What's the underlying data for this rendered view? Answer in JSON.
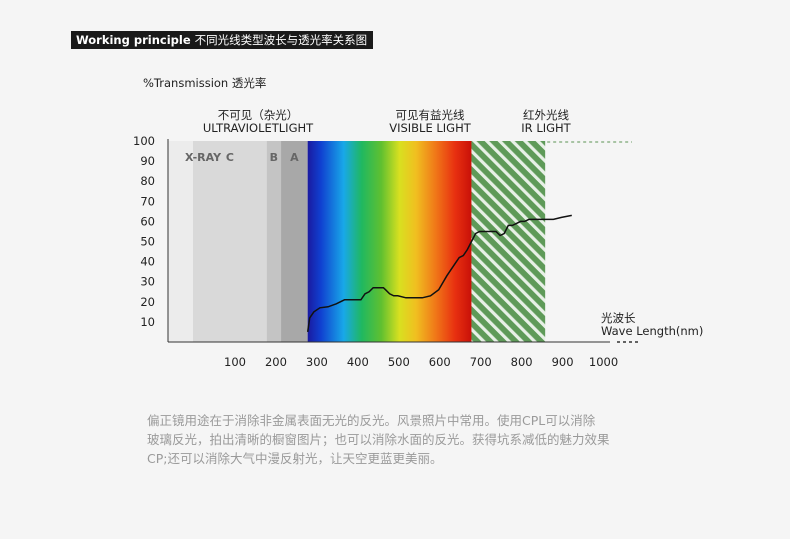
{
  "header": {
    "title_en": "Working principle",
    "title_zh": "不同光线类型波长与透光率关系图"
  },
  "chart_data": {
    "type": "line",
    "ylabel": "%Transmission 透光率",
    "xlabel_zh": "光波长",
    "xlabel_en": "Wave Length(nm)",
    "x_ticks": [
      100,
      200,
      300,
      400,
      500,
      600,
      700,
      800,
      900,
      1000
    ],
    "y_ticks": [
      10,
      20,
      30,
      40,
      50,
      60,
      70,
      80,
      90,
      100
    ],
    "ylim": [
      0,
      100
    ],
    "regions": [
      {
        "label": "X-RAY",
        "from": 0,
        "to": 100,
        "color": "#ececec"
      },
      {
        "label": "C",
        "from": 100,
        "to": 280,
        "color": "#d9d9d9"
      },
      {
        "label": "B",
        "from": 280,
        "to": 315,
        "color": "#c4c4c4"
      },
      {
        "label": "A",
        "from": 315,
        "to": 380,
        "color": "#a8a8a8"
      }
    ],
    "region_groups": [
      {
        "label_zh": "不可见（杂光）",
        "label_en": "ULTRAVIOLETLIGHT"
      },
      {
        "label_zh": "可见有益光线",
        "label_en": "VISIBLE LIGHT"
      },
      {
        "label_zh": "红外光线",
        "label_en": "IR LIGHT"
      }
    ],
    "visible_range": [
      380,
      780
    ],
    "ir_range": [
      780,
      960
    ],
    "series": [
      {
        "x": [
          380,
          385,
          395,
          410,
          430,
          450,
          470,
          490,
          510,
          520,
          530,
          540,
          550,
          560,
          565,
          570,
          580,
          590,
          600,
          620,
          640,
          660,
          680,
          700,
          720,
          740,
          750,
          760,
          770,
          780,
          790,
          800,
          820,
          840,
          850,
          860,
          870,
          880,
          890,
          900,
          910,
          920,
          940,
          960,
          980,
          1000,
          1025
        ],
        "y": [
          5,
          12,
          15,
          17,
          17.5,
          19,
          21,
          21,
          21,
          24,
          25,
          27,
          27,
          27,
          27,
          26,
          24,
          23,
          23,
          22,
          22,
          22,
          23,
          26,
          33,
          39,
          42,
          43,
          46,
          50,
          54,
          55,
          55,
          55,
          53,
          54,
          58,
          58,
          59,
          60,
          60,
          61,
          61,
          61,
          61,
          62,
          63
        ]
      }
    ]
  },
  "description": {
    "lines": [
      "偏正镜用途在于消除非金属表面无光的反光。风景照片中常用。使用CPL可以消除",
      "玻璃反光，拍出清晰的橱窗图片；也可以消除水面的反光。获得坑系减低的魅力效果",
      "CP;还可以消除大气中漫反射光，让天空更蓝更美丽。"
    ]
  }
}
